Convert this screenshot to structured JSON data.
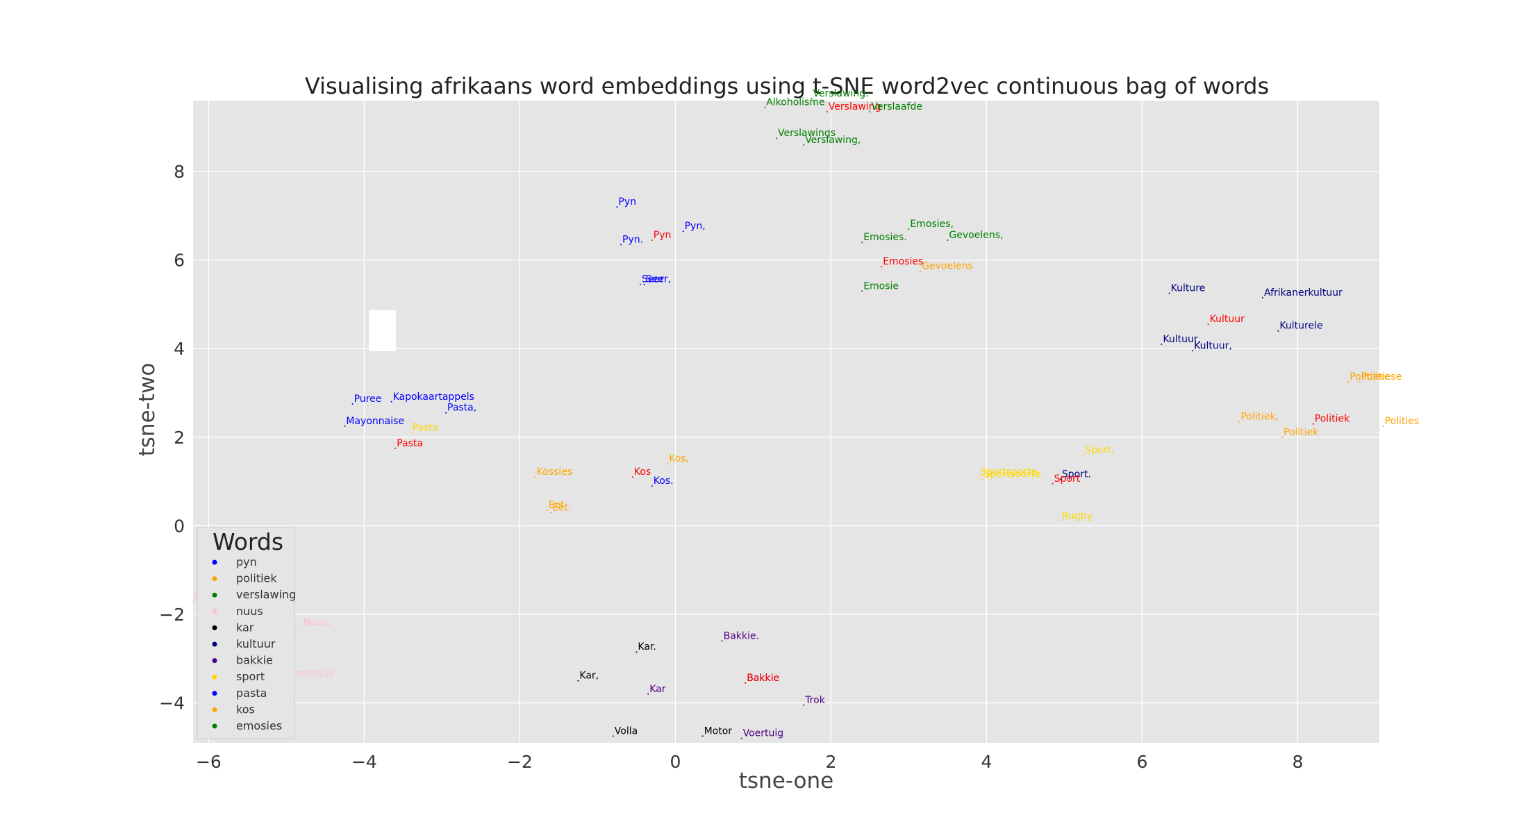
{
  "chart_data": {
    "type": "scatter",
    "title": "Visualising afrikaans word embeddings using t-SNE word2vec continuous bag of words",
    "xlabel": "tsne-one",
    "ylabel": "tsne-two",
    "xlim": [
      -6.2,
      9.05
    ],
    "ylim": [
      -4.9,
      9.6
    ],
    "xticks": [
      -6,
      -4,
      -2,
      0,
      2,
      4,
      6,
      8
    ],
    "yticks": [
      -4,
      -2,
      0,
      2,
      4,
      6,
      8
    ],
    "xtick_labels": [
      "−6",
      "−4",
      "−2",
      "0",
      "2",
      "4",
      "6",
      "8"
    ],
    "ytick_labels": [
      "−4",
      "−2",
      "0",
      "2",
      "4",
      "6",
      "8"
    ],
    "grid": true,
    "background": "#e5e5e5",
    "legend": {
      "title": "Words",
      "position": "lower-left",
      "entries": [
        {
          "name": "pyn",
          "color": "#0000ff"
        },
        {
          "name": "politiek",
          "color": "#ffa500"
        },
        {
          "name": "verslawing",
          "color": "#008000"
        },
        {
          "name": "nuus",
          "color": "#ffc0cb"
        },
        {
          "name": "kar",
          "color": "#000000"
        },
        {
          "name": "kultuur",
          "color": "#000080"
        },
        {
          "name": "bakkie",
          "color": "#4b0082"
        },
        {
          "name": "sport",
          "color": "#ffd700"
        },
        {
          "name": "pasta",
          "color": "#0000ff"
        },
        {
          "name": "kos",
          "color": "#ffa500"
        },
        {
          "name": "emosies",
          "color": "#008000"
        }
      ]
    },
    "points": [
      {
        "label": "Verslawing.",
        "x": 1.75,
        "y": 9.65,
        "color": "#008000"
      },
      {
        "label": "Alkoholisme",
        "x": 1.15,
        "y": 9.45,
        "color": "#008000"
      },
      {
        "label": "Verslawing",
        "x": 1.95,
        "y": 9.35,
        "color": "#ff0000"
      },
      {
        "label": "Verslaafde",
        "x": 2.5,
        "y": 9.35,
        "color": "#008000"
      },
      {
        "label": "Verslawings",
        "x": 1.3,
        "y": 8.75,
        "color": "#008000"
      },
      {
        "label": "Verslawing,",
        "x": 1.65,
        "y": 8.6,
        "color": "#008000"
      },
      {
        "label": "Pyn",
        "x": -0.75,
        "y": 7.2,
        "color": "#0000ff"
      },
      {
        "label": "Pyn,",
        "x": 0.1,
        "y": 6.65,
        "color": "#0000ff"
      },
      {
        "label": "Pyn.",
        "x": -0.7,
        "y": 6.35,
        "color": "#0000ff"
      },
      {
        "label": "Pyn",
        "x": -0.3,
        "y": 6.45,
        "color": "#ff0000"
      },
      {
        "label": "Seer,",
        "x": -0.4,
        "y": 5.45,
        "color": "#0000ff"
      },
      {
        "label": "Seer",
        "x": -0.45,
        "y": 5.45,
        "color": "#0000ff"
      },
      {
        "label": "Emosies,",
        "x": 3.0,
        "y": 6.7,
        "color": "#008000"
      },
      {
        "label": "Emosies.",
        "x": 2.4,
        "y": 6.4,
        "color": "#008000"
      },
      {
        "label": "Gevoelens,",
        "x": 3.5,
        "y": 6.45,
        "color": "#008000"
      },
      {
        "label": "Emosies",
        "x": 2.65,
        "y": 5.85,
        "color": "#ff0000"
      },
      {
        "label": "Gevoelens",
        "x": 3.15,
        "y": 5.75,
        "color": "#ffa500"
      },
      {
        "label": "Emosie",
        "x": 2.4,
        "y": 5.3,
        "color": "#008000"
      },
      {
        "label": "Kulture",
        "x": 6.35,
        "y": 5.25,
        "color": "#000080"
      },
      {
        "label": "Afrikanerkultuur",
        "x": 7.55,
        "y": 5.15,
        "color": "#000080"
      },
      {
        "label": "Kultuur",
        "x": 6.85,
        "y": 4.55,
        "color": "#ff0000"
      },
      {
        "label": "Kulturele",
        "x": 7.75,
        "y": 4.4,
        "color": "#000080"
      },
      {
        "label": "Kultuur,",
        "x": 6.25,
        "y": 4.1,
        "color": "#000080"
      },
      {
        "label": "Kultuur,",
        "x": 6.65,
        "y": 3.95,
        "color": "#000080"
      },
      {
        "label": "Politiese",
        "x": 8.65,
        "y": 3.25,
        "color": "#ffa500"
      },
      {
        "label": "Politiese",
        "x": 8.8,
        "y": 3.25,
        "color": "#ffa500"
      },
      {
        "label": "Politiek,",
        "x": 7.25,
        "y": 2.35,
        "color": "#ffa500"
      },
      {
        "label": "Politiek",
        "x": 8.2,
        "y": 2.3,
        "color": "#ff0000"
      },
      {
        "label": "Polities",
        "x": 9.1,
        "y": 2.25,
        "color": "#ffa500"
      },
      {
        "label": "Politiek",
        "x": 7.8,
        "y": 2.0,
        "color": "#ffa500"
      },
      {
        "label": "Puree",
        "x": -4.15,
        "y": 2.75,
        "color": "#0000ff"
      },
      {
        "label": "Kapokaartappels",
        "x": -3.65,
        "y": 2.8,
        "color": "#0000ff"
      },
      {
        "label": "Pasta,",
        "x": -2.95,
        "y": 2.55,
        "color": "#0000ff"
      },
      {
        "label": "Mayonnaise",
        "x": -4.25,
        "y": 2.25,
        "color": "#0000ff"
      },
      {
        "label": "Pasta",
        "x": -3.4,
        "y": 2.1,
        "color": "#ffd700"
      },
      {
        "label": "Pasta",
        "x": -3.6,
        "y": 1.75,
        "color": "#ff0000"
      },
      {
        "label": "Kos,",
        "x": -0.1,
        "y": 1.4,
        "color": "#ffa500"
      },
      {
        "label": "Kossies",
        "x": -1.8,
        "y": 1.1,
        "color": "#ffa500"
      },
      {
        "label": "Kos",
        "x": -0.55,
        "y": 1.1,
        "color": "#ff0000"
      },
      {
        "label": "Kos.",
        "x": -0.3,
        "y": 0.9,
        "color": "#0000ff"
      },
      {
        "label": "Eet",
        "x": -1.65,
        "y": 0.35,
        "color": "#ffa500"
      },
      {
        "label": "Eet.",
        "x": -1.6,
        "y": 0.3,
        "color": "#ffa500"
      },
      {
        "label": "Sport,",
        "x": 5.25,
        "y": 1.6,
        "color": "#ffd700"
      },
      {
        "label": "Sportsoorte",
        "x": 3.9,
        "y": 1.1,
        "color": "#ffd700"
      },
      {
        "label": "Sportsoorte",
        "x": 3.95,
        "y": 1.05,
        "color": "#ffd700"
      },
      {
        "label": "Sport.",
        "x": 4.95,
        "y": 1.05,
        "color": "#000080"
      },
      {
        "label": "Sport",
        "x": 4.85,
        "y": 0.95,
        "color": "#ff0000"
      },
      {
        "label": "Rugby",
        "x": 4.95,
        "y": 0.1,
        "color": "#ffd700"
      },
      {
        "label": "Nuus",
        "x": -6.2,
        "y": -1.7,
        "color": "#ffc0cb"
      },
      {
        "label": "Nuus,",
        "x": -4.8,
        "y": -2.3,
        "color": "#ffc0cb"
      },
      {
        "label": "Nuus",
        "x": -5.2,
        "y": -2.5,
        "color": "#ffc0cb"
      },
      {
        "label": "Hoofnuus",
        "x": -5.0,
        "y": -3.45,
        "color": "#ffc0cb"
      },
      {
        "label": "Bakkie.",
        "x": 0.6,
        "y": -2.6,
        "color": "#4b0082"
      },
      {
        "label": "Kar.",
        "x": -0.5,
        "y": -2.85,
        "color": "#000000"
      },
      {
        "label": "Kar,",
        "x": -1.25,
        "y": -3.5,
        "color": "#000000"
      },
      {
        "label": "Bakkie",
        "x": 0.9,
        "y": -3.55,
        "color": "#4b0082"
      },
      {
        "label": "Bakkie",
        "x": 0.9,
        "y": -3.55,
        "color": "#ff0000"
      },
      {
        "label": "Kar",
        "x": -0.35,
        "y": -3.8,
        "color": "#4b0082"
      },
      {
        "label": "Trok",
        "x": 1.65,
        "y": -4.05,
        "color": "#4b0082"
      },
      {
        "label": "Volla",
        "x": -0.8,
        "y": -4.75,
        "color": "#000000"
      },
      {
        "label": "Motor",
        "x": 0.35,
        "y": -4.75,
        "color": "#000000"
      },
      {
        "label": "Voertuig",
        "x": 0.85,
        "y": -4.8,
        "color": "#4b0082"
      }
    ]
  }
}
